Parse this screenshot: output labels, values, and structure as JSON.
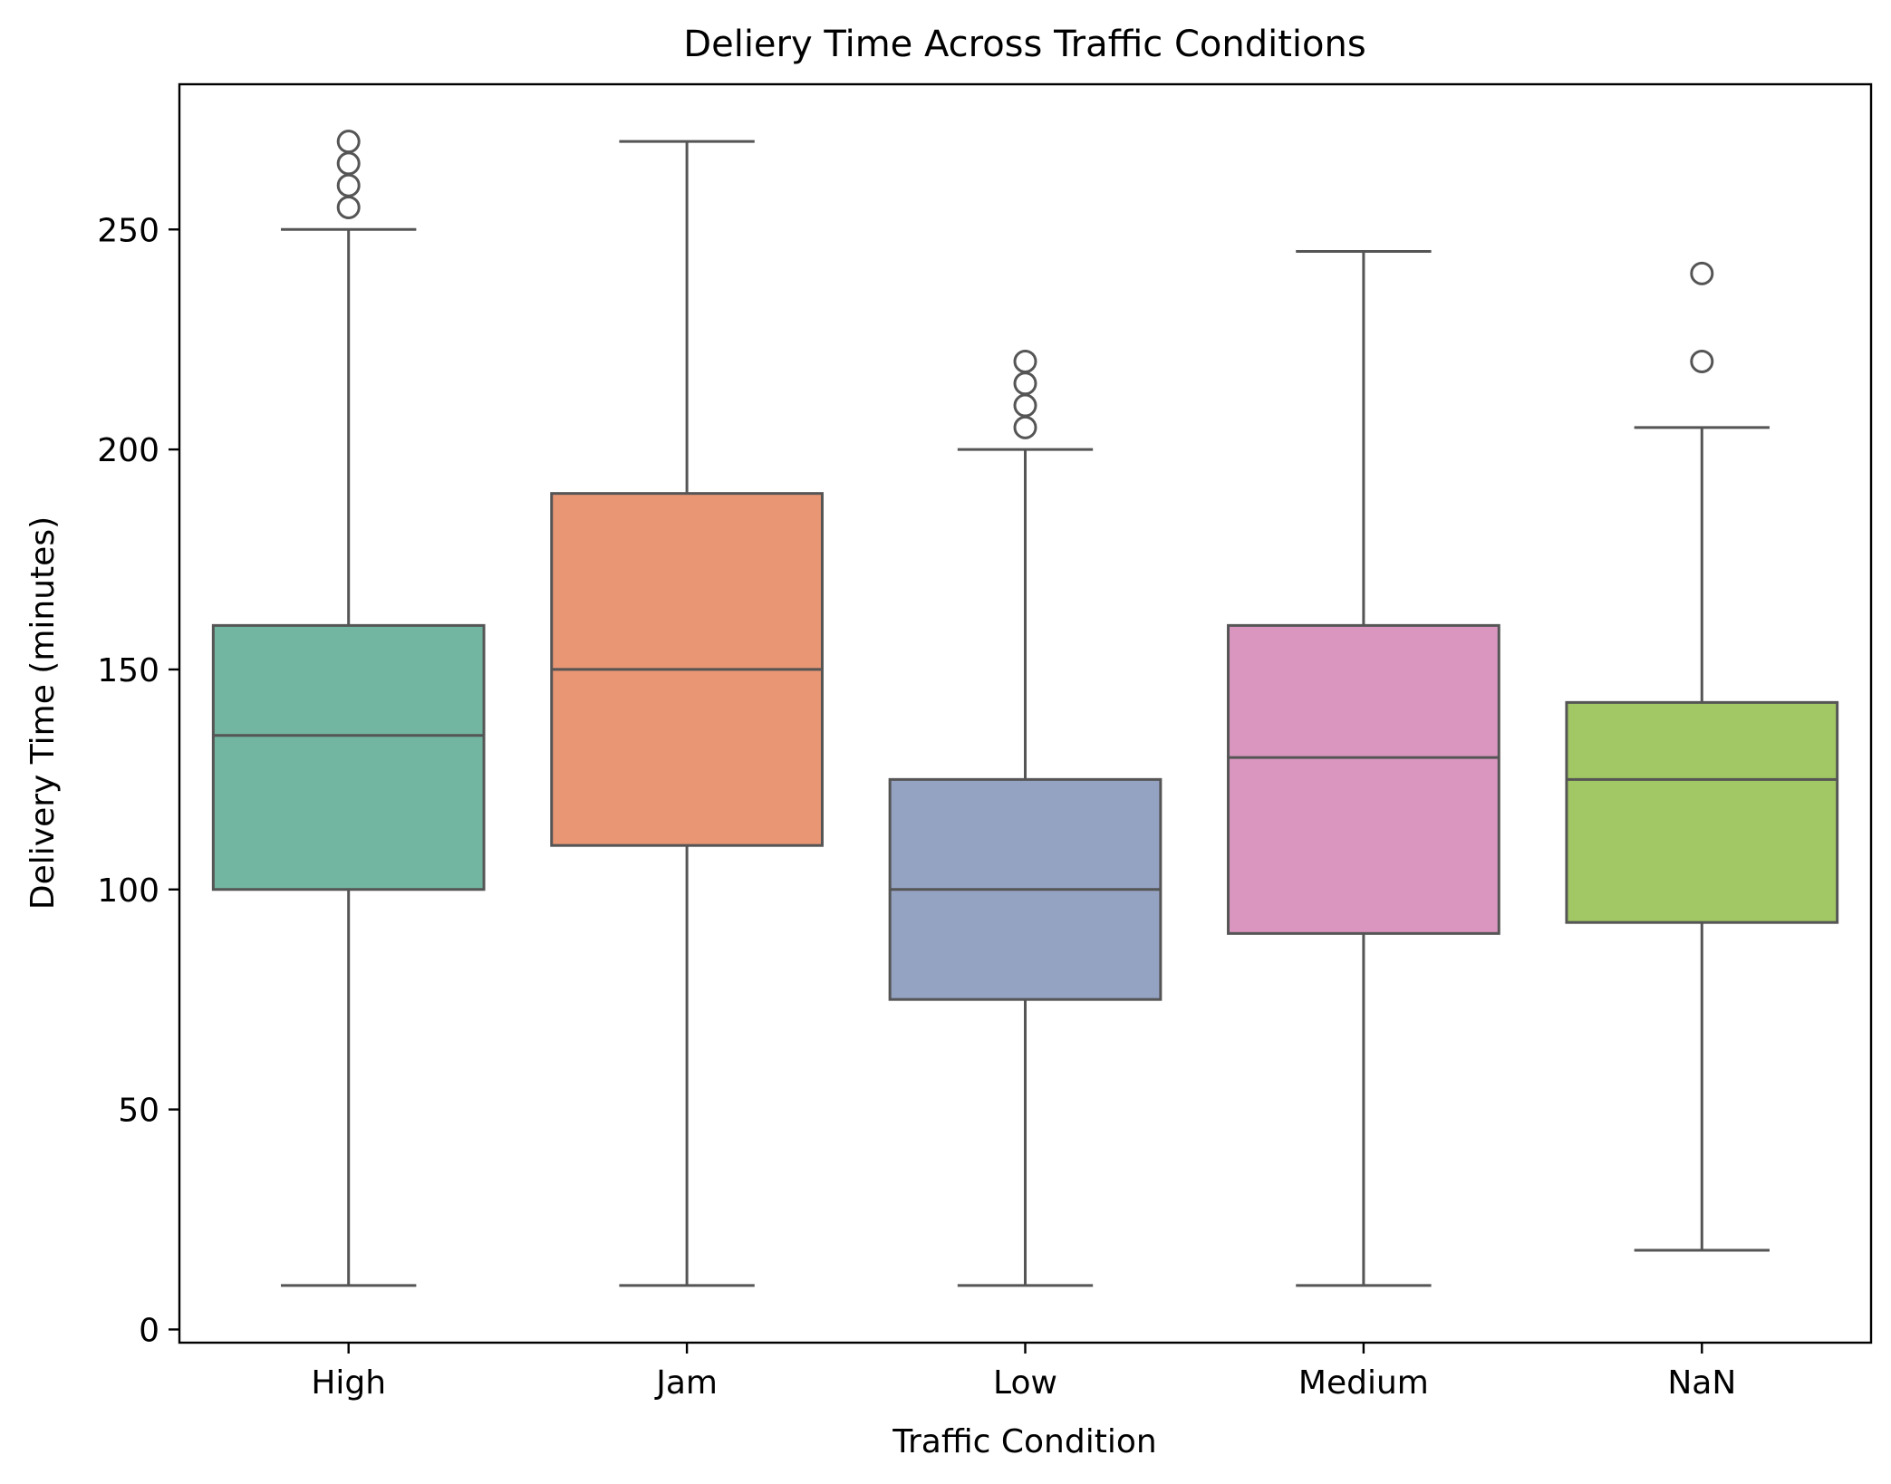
{
  "chart_data": {
    "type": "box",
    "title": "Deliery Time Across Traffic Conditions",
    "xlabel": "Traffic Condition",
    "ylabel": "Delivery Time (minutes)",
    "ylim": [
      -3,
      283
    ],
    "yticks": [
      0,
      50,
      100,
      150,
      200,
      250
    ],
    "grid": false,
    "legend": "none",
    "box_edge_color": "#555555",
    "categories": [
      "High",
      "Jam",
      "Low",
      "Medium",
      "NaN"
    ],
    "boxes": [
      {
        "category": "High",
        "color": "#72b6a1",
        "whisker_low": 10,
        "q1": 100,
        "median": 135,
        "q3": 160,
        "whisker_high": 250,
        "outliers": [
          255,
          260,
          265,
          270
        ]
      },
      {
        "category": "Jam",
        "color": "#e99675",
        "whisker_low": 10,
        "q1": 110,
        "median": 150,
        "q3": 190,
        "whisker_high": 270,
        "outliers": []
      },
      {
        "category": "Low",
        "color": "#95a3c3",
        "whisker_low": 10,
        "q1": 75,
        "median": 100,
        "q3": 125,
        "whisker_high": 200,
        "outliers": [
          205,
          210,
          215,
          220
        ]
      },
      {
        "category": "Medium",
        "color": "#db96c0",
        "whisker_low": 10,
        "q1": 90,
        "median": 130,
        "q3": 160,
        "whisker_high": 245,
        "outliers": []
      },
      {
        "category": "NaN",
        "color": "#a2c865",
        "whisker_low": 18,
        "q1": 92.5,
        "median": 125,
        "q3": 142.5,
        "whisker_high": 205,
        "outliers": [
          220,
          240
        ]
      }
    ]
  }
}
